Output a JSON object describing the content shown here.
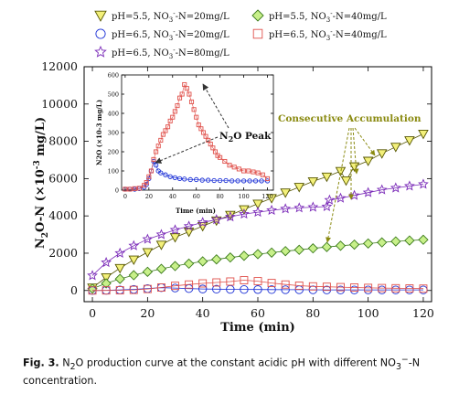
{
  "legend": [
    {
      "text": "pH=5.5, NO3--N=20mg/L",
      "pre": "pH=5.5, NO",
      "sub": "3",
      "sup": "-",
      "post": "-N=20mg/L",
      "marker": "triangle-down",
      "color": "#555500",
      "fill": "#f3f07a"
    },
    {
      "text": "pH=5.5, NO3--N=40mg/L",
      "pre": "pH=5.5, NO",
      "sub": "3",
      "sup": "-",
      "post": "-N=40mg/L",
      "marker": "diamond",
      "color": "#3a7a1a",
      "fill": "#c8f08a"
    },
    {
      "text": "pH=6.5, NO3--N=20mg/L",
      "pre": "pH=6.5, NO",
      "sub": "3",
      "sup": "-",
      "post": "-N=20mg/L",
      "marker": "circle",
      "color": "#1a2fd6",
      "fill": "none"
    },
    {
      "text": "pH=6.5, NO3--N=40mg/L",
      "pre": "pH=6.5, NO",
      "sub": "3",
      "sup": "-",
      "post": "-N=40mg/L",
      "marker": "square",
      "color": "#e0504a",
      "fill": "none"
    },
    {
      "text": "pH=6.5, NO3--N=80mg/L",
      "pre": "pH=6.5, NO",
      "sub": "3",
      "sup": "-",
      "post": "-N=80mg/L",
      "marker": "star",
      "color": "#7a2ab8",
      "fill": "none"
    }
  ],
  "axes": {
    "y_label_pre": "N",
    "y_label_sub": "2",
    "y_label_mid": "O-N (×10",
    "y_label_sup": "-3",
    "y_label_post": " mg/L)",
    "x_label": "Time (min)"
  },
  "inset": {
    "y_label": "N2O (×10-3 mg/L)",
    "x_label": "Time (min)"
  },
  "annotations": {
    "peak_pre": "N",
    "peak_sub": "2",
    "peak_post": "O Peak",
    "accumulation": "Consecutive Accumulation",
    "accumulation_color": "#8a8a10"
  },
  "caption": {
    "label": "Fig. 3.",
    "text": " N2O production curve at the constant acidic pH with different NO3--N concentration.",
    "seg1": " N",
    "sub1": "2",
    "seg2": "O production curve at the constant acidic pH with different NO",
    "sub2": "3",
    "sup2": "−",
    "seg3": "-N concentration."
  },
  "chart_data": [
    {
      "type": "scatter",
      "title": "",
      "xlabel": "Time (min)",
      "ylabel": "N2O-N (×10-3 mg/L)",
      "xlim": [
        -3,
        123
      ],
      "ylim": [
        -600,
        12000
      ],
      "xticks": [
        0,
        20,
        40,
        60,
        80,
        100,
        120
      ],
      "yticks": [
        0,
        2000,
        4000,
        6000,
        8000,
        10000,
        12000
      ],
      "grid": false,
      "series": [
        {
          "name": "pH=5.5, NO3--N=20mg/L",
          "x": [
            0,
            5,
            10,
            15,
            20,
            25,
            30,
            35,
            40,
            45,
            50,
            55,
            60,
            65,
            70,
            75,
            80,
            85,
            90,
            92,
            95,
            100,
            105,
            110,
            115,
            120
          ],
          "y": [
            150,
            700,
            1200,
            1650,
            2050,
            2450,
            2850,
            3150,
            3450,
            3750,
            4050,
            4350,
            4650,
            4950,
            5250,
            5550,
            5850,
            6100,
            6400,
            5900,
            6650,
            6950,
            7350,
            7700,
            8050,
            8400
          ]
        },
        {
          "name": "pH=5.5, NO3--N=40mg/L",
          "x": [
            0,
            5,
            10,
            15,
            20,
            25,
            30,
            35,
            40,
            45,
            50,
            55,
            60,
            65,
            70,
            75,
            80,
            85,
            90,
            95,
            100,
            105,
            110,
            115,
            120
          ],
          "y": [
            100,
            380,
            620,
            820,
            1000,
            1160,
            1310,
            1440,
            1560,
            1670,
            1770,
            1860,
            1950,
            2030,
            2110,
            2180,
            2260,
            2330,
            2400,
            2460,
            2520,
            2580,
            2630,
            2680,
            2720
          ]
        },
        {
          "name": "pH=6.5, NO3--N=20mg/L",
          "x": [
            0,
            5,
            10,
            15,
            20,
            25,
            30,
            35,
            40,
            45,
            50,
            55,
            60,
            65,
            70,
            75,
            80,
            85,
            90,
            95,
            100,
            105,
            110,
            115,
            120
          ],
          "y": [
            0,
            10,
            30,
            60,
            100,
            150,
            130,
            100,
            80,
            70,
            60,
            55,
            50,
            45,
            40,
            40,
            35,
            30,
            30,
            30,
            30,
            30,
            30,
            30,
            30
          ]
        },
        {
          "name": "pH=6.5, NO3--N=40mg/L",
          "x": [
            0,
            5,
            10,
            15,
            20,
            25,
            30,
            35,
            40,
            45,
            50,
            55,
            60,
            65,
            70,
            75,
            80,
            85,
            90,
            95,
            100,
            105,
            110,
            115,
            120
          ],
          "y": [
            0,
            5,
            10,
            30,
            80,
            160,
            250,
            320,
            380,
            430,
            480,
            550,
            500,
            400,
            320,
            260,
            220,
            200,
            180,
            160,
            140,
            130,
            120,
            110,
            100
          ]
        },
        {
          "name": "pH=6.5, NO3--N=80mg/L",
          "x": [
            0,
            5,
            10,
            15,
            20,
            25,
            30,
            35,
            40,
            45,
            50,
            55,
            60,
            65,
            70,
            75,
            80,
            85,
            86,
            90,
            95,
            100,
            105,
            110,
            115,
            120
          ],
          "y": [
            800,
            1500,
            2000,
            2400,
            2750,
            3000,
            3250,
            3450,
            3650,
            3800,
            3950,
            4100,
            4200,
            4300,
            4380,
            4430,
            4470,
            4500,
            4850,
            4950,
            5100,
            5250,
            5400,
            5500,
            5600,
            5700
          ]
        }
      ]
    },
    {
      "type": "scatter",
      "title": "",
      "xlabel": "Time (min)",
      "ylabel": "N2O (×10-3 mg/L)",
      "xlim": [
        -3,
        125
      ],
      "ylim": [
        0,
        600
      ],
      "xticks": [
        0,
        20,
        40,
        60,
        80,
        100,
        120
      ],
      "yticks": [
        0,
        100,
        200,
        300,
        400,
        500,
        600
      ],
      "grid": false,
      "series": [
        {
          "name": "pH=6.5, NO3--N=20mg/L",
          "x": [
            0,
            4,
            8,
            12,
            16,
            18,
            20,
            22,
            24,
            26,
            28,
            30,
            34,
            38,
            42,
            46,
            50,
            55,
            60,
            65,
            70,
            75,
            80,
            85,
            90,
            95,
            100,
            105,
            110,
            115,
            120
          ],
          "y": [
            5,
            5,
            5,
            8,
            15,
            30,
            60,
            100,
            150,
            130,
            100,
            90,
            80,
            70,
            65,
            60,
            58,
            55,
            55,
            52,
            52,
            50,
            50,
            50,
            48,
            48,
            48,
            48,
            48,
            48,
            48
          ]
        },
        {
          "name": "pH=6.5, NO3--N=40mg/L",
          "x": [
            0,
            4,
            8,
            12,
            16,
            18,
            20,
            22,
            24,
            26,
            28,
            30,
            32,
            34,
            36,
            38,
            40,
            42,
            44,
            46,
            48,
            50,
            52,
            54,
            56,
            58,
            60,
            62,
            64,
            66,
            68,
            70,
            72,
            74,
            76,
            78,
            80,
            84,
            88,
            92,
            96,
            100,
            104,
            108,
            112,
            116,
            120
          ],
          "y": [
            5,
            5,
            8,
            10,
            25,
            40,
            70,
            100,
            160,
            200,
            230,
            260,
            290,
            310,
            330,
            360,
            380,
            410,
            440,
            480,
            500,
            550,
            530,
            500,
            460,
            420,
            380,
            340,
            320,
            300,
            280,
            260,
            240,
            220,
            200,
            180,
            170,
            150,
            130,
            120,
            110,
            100,
            100,
            95,
            90,
            80,
            60
          ]
        }
      ]
    }
  ]
}
